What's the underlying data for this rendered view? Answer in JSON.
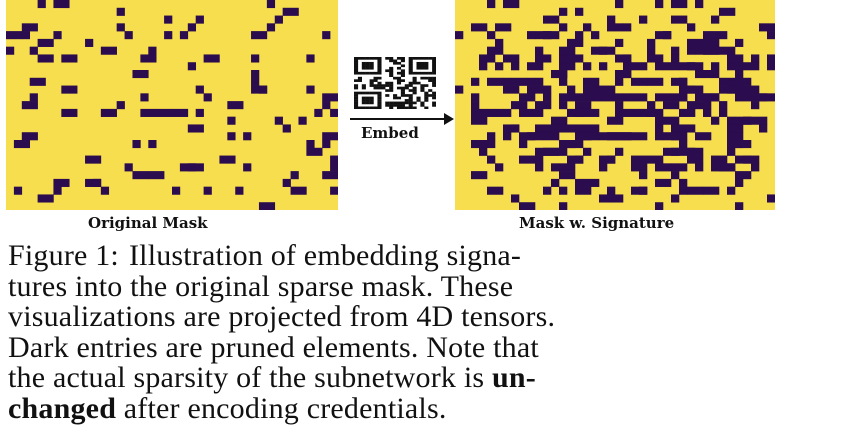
{
  "figure": {
    "left_panel_label": "Original Mask",
    "right_panel_label": "Mask w. Signature",
    "arrow_label": "Embed",
    "colors": {
      "kept": "#f6de4f",
      "pruned": "#2b0c4f"
    }
  },
  "caption": {
    "label": "Figure 1:",
    "line1": "Illustration of embedding signa-",
    "line2": "tures into the original sparse mask.  These",
    "line3": "visualizations are projected from 4D tensors.",
    "line4": "Dark entries are pruned elements. Note that",
    "line5_pre": "the actual sparsity of the subnetwork is ",
    "line5_bold": "un-",
    "line6_bold": "changed",
    "line6_post": " after encoding credentials."
  }
}
